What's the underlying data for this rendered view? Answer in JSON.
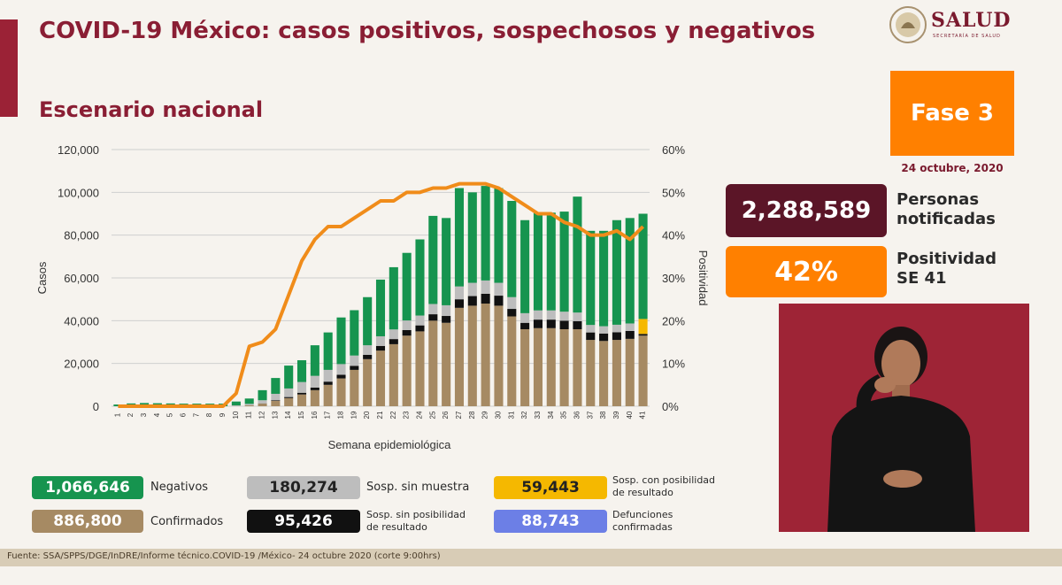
{
  "header": {
    "title": "COVID-19 México: casos positivos, sospechosos y negativos",
    "subtitle": "Escenario nacional",
    "logo_text": "SALUD",
    "logo_subtext": "SECRETARÍA DE SALUD"
  },
  "fase": {
    "label": "Fase 3",
    "date": "24 octubre, 2020"
  },
  "stats": {
    "notificadas_value": "2,288,589",
    "notificadas_label": "Personas notificadas",
    "positividad_value": "42%",
    "positividad_label": "Positividad SE 41"
  },
  "legend": {
    "negativos": {
      "value": "1,066,646",
      "label": "Negativos"
    },
    "confirmados": {
      "value": "886,800",
      "label": "Confirmados"
    },
    "sin_muestra": {
      "value": "180,274",
      "label": "Sosp. sin muestra"
    },
    "sin_posibilidad": {
      "value": "95,426",
      "label_1": "Sosp. sin posibilidad",
      "label_2": "de resultado"
    },
    "con_posibilidad": {
      "value": "59,443",
      "label_1": "Sosp. con posibilidad",
      "label_2": "de resultado"
    },
    "defunciones": {
      "value": "88,743",
      "label_1": "Defunciones",
      "label_2": "confirmadas"
    }
  },
  "footer": {
    "source": "Fuente: SSA/SPPS/DGE/InDRE/Informe técnico.COVID-19 /México- 24 octubre 2020 (corte 9:00hrs)"
  },
  "colors": {
    "brand": "#9b2236",
    "negativos": "#16944f",
    "confirmados": "#a68a63",
    "sin_muestra": "#bdbdbd",
    "sin_posibilidad": "#111111",
    "con_posibilidad": "#f5b800",
    "defunciones": "#6c7fe6",
    "positividad": "#f08c1a"
  },
  "chart_data": {
    "type": "bar",
    "stacked": true,
    "xlabel": "Semana epidemiológica",
    "ylabel": "Casos",
    "y2label": "Positividad",
    "ylim": [
      0,
      120000
    ],
    "y2lim": [
      0,
      60
    ],
    "yticks": [
      "0",
      "20,000",
      "40,000",
      "60,000",
      "80,000",
      "100,000",
      "120,000"
    ],
    "y2ticks": [
      "0%",
      "10%",
      "20%",
      "30%",
      "40%",
      "50%",
      "60%"
    ],
    "categories": [
      "1",
      "2",
      "3",
      "4",
      "5",
      "6",
      "7",
      "8",
      "9",
      "10",
      "11",
      "12",
      "13",
      "14",
      "15",
      "16",
      "17",
      "18",
      "19",
      "20",
      "21",
      "22",
      "23",
      "24",
      "25",
      "26",
      "27",
      "28",
      "29",
      "30",
      "31",
      "32",
      "33",
      "34",
      "35",
      "36",
      "37",
      "38",
      "39",
      "40",
      "41"
    ],
    "series": [
      {
        "name": "Confirmados",
        "values": [
          0,
          0,
          0,
          0,
          0,
          0,
          0,
          0,
          0,
          100,
          400,
          1200,
          2500,
          3800,
          5500,
          7500,
          10000,
          13000,
          17000,
          22000,
          26000,
          29000,
          33000,
          35000,
          40000,
          39000,
          46000,
          47000,
          48000,
          47000,
          42000,
          36000,
          36500,
          36500,
          36000,
          36000,
          31000,
          30500,
          31000,
          31500,
          33000
        ]
      },
      {
        "name": "Sosp. sin posibilidad de resultado",
        "values": [
          0,
          0,
          0,
          0,
          0,
          0,
          0,
          0,
          0,
          0,
          0,
          100,
          300,
          500,
          800,
          1200,
          1500,
          1700,
          1900,
          2000,
          2200,
          2400,
          2600,
          2800,
          3000,
          3200,
          4000,
          4500,
          4600,
          4700,
          3500,
          3000,
          4000,
          4000,
          4000,
          3800,
          3500,
          3500,
          3600,
          3700,
          800
        ]
      },
      {
        "name": "Sosp. con posibilidad de resultado",
        "values": [
          0,
          0,
          0,
          0,
          0,
          0,
          0,
          0,
          0,
          0,
          0,
          0,
          0,
          0,
          0,
          0,
          0,
          0,
          0,
          0,
          0,
          0,
          0,
          0,
          0,
          0,
          0,
          0,
          0,
          0,
          0,
          0,
          0,
          0,
          0,
          0,
          0,
          0,
          0,
          0,
          7000
        ]
      },
      {
        "name": "Sosp. sin muestra",
        "values": [
          0,
          0,
          0,
          0,
          0,
          0,
          0,
          0,
          0,
          300,
          700,
          1500,
          3000,
          4000,
          5000,
          5500,
          5500,
          5000,
          4800,
          4500,
          4500,
          4500,
          4500,
          4600,
          4800,
          5000,
          6000,
          6200,
          6200,
          6000,
          5500,
          4500,
          4300,
          4300,
          4200,
          4000,
          3500,
          3400,
          3500,
          3500,
          0
        ]
      },
      {
        "name": "Negativos",
        "values": [
          800,
          1300,
          1500,
          1400,
          1300,
          1200,
          1200,
          1200,
          1200,
          1800,
          2500,
          4700,
          7400,
          10700,
          10200,
          14300,
          17500,
          21800,
          21200,
          22500,
          26500,
          29100,
          31600,
          35600,
          41200,
          40800,
          46000,
          42300,
          44200,
          44300,
          45000,
          43500,
          45700,
          45700,
          46800,
          54200,
          44000,
          44600,
          48900,
          49300,
          49200
        ]
      }
    ],
    "line": {
      "name": "Positividad",
      "values": [
        0,
        0,
        0,
        0,
        0,
        0,
        0,
        0,
        0,
        3,
        14,
        15,
        18,
        26,
        34,
        39,
        42,
        42,
        44,
        46,
        48,
        48,
        50,
        50,
        51,
        51,
        52,
        52,
        52,
        51,
        49,
        47,
        45,
        45,
        43,
        42,
        40,
        40,
        41,
        39,
        42
      ]
    }
  }
}
